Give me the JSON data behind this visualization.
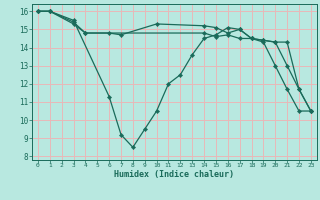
{
  "xlabel": "Humidex (Indice chaleur)",
  "bg_color": "#b8e8e0",
  "grid_color": "#e8b8b8",
  "line_color": "#1a6b5a",
  "xlim": [
    -0.5,
    23.5
  ],
  "ylim": [
    7.8,
    16.4
  ],
  "yticks": [
    8,
    9,
    10,
    11,
    12,
    13,
    14,
    15,
    16
  ],
  "xticks": [
    0,
    1,
    2,
    3,
    4,
    5,
    6,
    7,
    8,
    9,
    10,
    11,
    12,
    13,
    14,
    15,
    16,
    17,
    18,
    19,
    20,
    21,
    22,
    23
  ],
  "lines": [
    {
      "x": [
        0,
        1,
        3,
        6,
        7,
        8,
        9,
        10,
        11,
        12,
        13,
        14,
        15,
        16,
        17,
        18,
        19,
        20,
        21,
        22,
        23
      ],
      "y": [
        16,
        16,
        15.5,
        11.3,
        9.2,
        8.5,
        9.5,
        10.5,
        12.0,
        12.5,
        13.6,
        14.5,
        14.7,
        15.1,
        15.0,
        14.5,
        14.3,
        13.0,
        11.7,
        10.5,
        10.5
      ]
    },
    {
      "x": [
        0,
        1,
        3,
        4,
        6,
        7,
        10,
        14,
        15,
        16,
        17,
        18,
        19,
        20,
        21,
        22,
        23
      ],
      "y": [
        16,
        16,
        15.3,
        14.8,
        14.8,
        14.7,
        15.3,
        15.2,
        15.1,
        14.8,
        15.0,
        14.5,
        14.4,
        14.3,
        14.3,
        11.7,
        10.5
      ]
    },
    {
      "x": [
        0,
        1,
        3,
        4,
        14,
        15,
        16,
        17,
        18,
        19,
        20,
        21,
        22,
        23
      ],
      "y": [
        16,
        16,
        15.4,
        14.8,
        14.8,
        14.6,
        14.7,
        14.5,
        14.5,
        14.4,
        14.3,
        13.0,
        11.7,
        10.5
      ]
    }
  ]
}
